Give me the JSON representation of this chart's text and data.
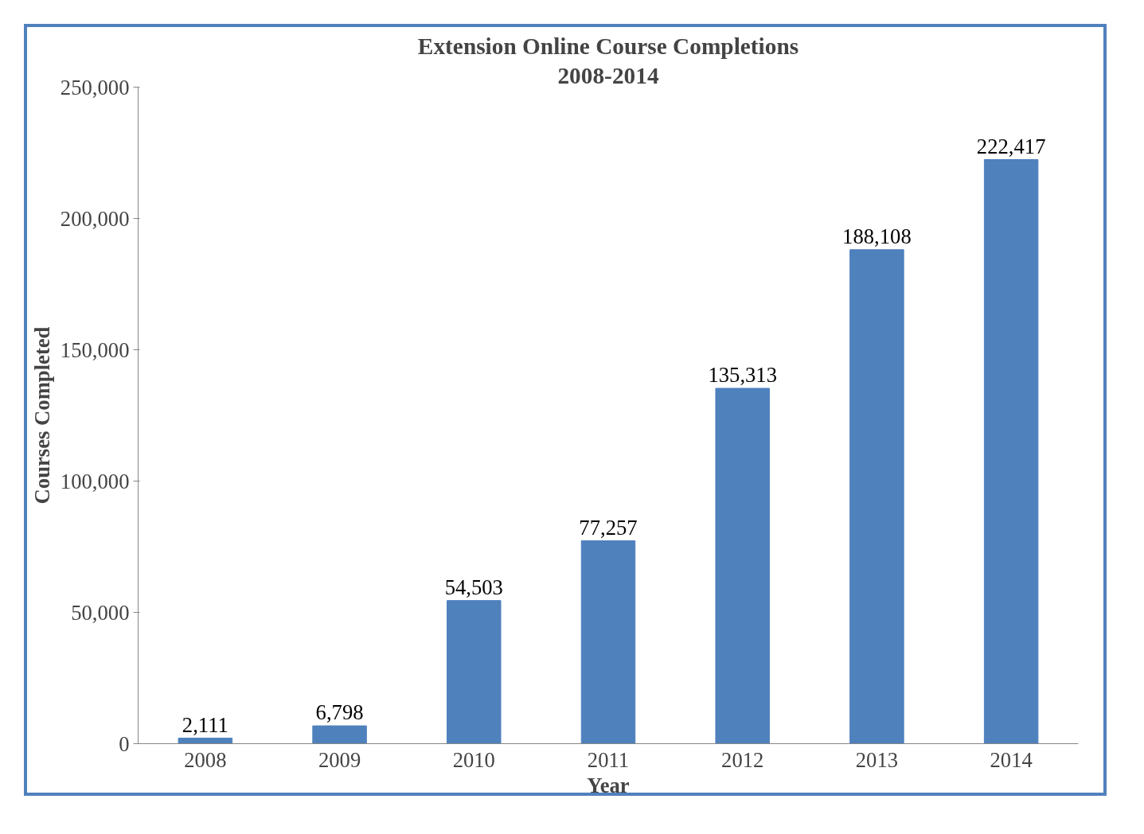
{
  "chart_data": {
    "type": "bar",
    "title": "Extension Online Course Completions",
    "subtitle": "2008-2014",
    "xlabel": "Year",
    "ylabel": "Courses Completed",
    "categories": [
      "2008",
      "2009",
      "2010",
      "2011",
      "2012",
      "2013",
      "2014"
    ],
    "values": [
      2111,
      6798,
      54503,
      77257,
      135313,
      188108,
      222417
    ],
    "color": "#4f81bd",
    "value_labels": [
      "2,111",
      "6,798",
      "54,503",
      "77,257",
      "135,313",
      "188,108",
      "222,417"
    ],
    "grid": false,
    "ylim": [
      0,
      250000
    ],
    "yticks": [
      {
        "value": 0,
        "label": "0"
      },
      {
        "value": 50000,
        "label": "50,000"
      },
      {
        "value": 100000,
        "label": "100,000"
      },
      {
        "value": 150000,
        "label": "150,000"
      },
      {
        "value": 200000,
        "label": "200,000"
      },
      {
        "value": 250000,
        "label": "250,000"
      }
    ]
  }
}
